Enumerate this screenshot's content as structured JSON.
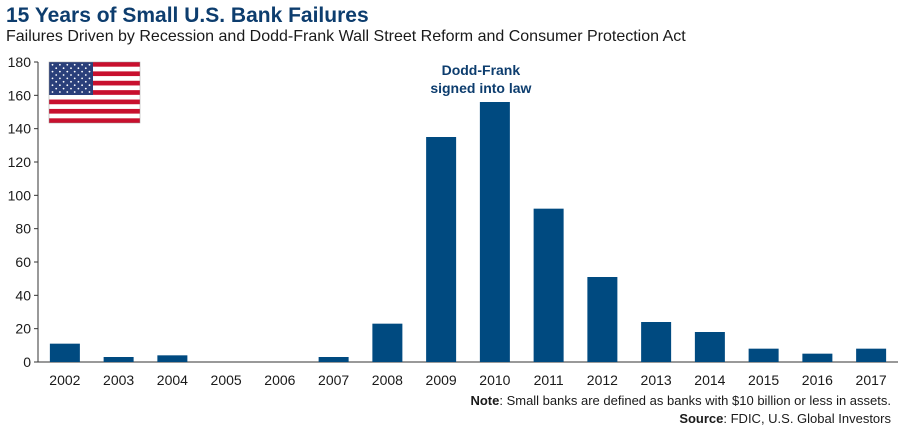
{
  "header": {
    "title": "15 Years of Small U.S. Bank Failures",
    "subtitle": "Failures Driven by Recession and Dodd-Frank Wall Street Reform and Consumer Protection Act"
  },
  "footer": {
    "note_label": "Note",
    "note_text": ": Small banks are defined as banks with $10 billion or less in assets.",
    "source_label": "Source",
    "source_text": ": FDIC, U.S. Global Investors"
  },
  "colors": {
    "bar": "#004a80",
    "title": "#0d3d6e",
    "annotation": "#0d3d6e",
    "axis": "#333333"
  },
  "chart_data": {
    "type": "bar",
    "categories": [
      "2002",
      "2003",
      "2004",
      "2005",
      "2006",
      "2007",
      "2008",
      "2009",
      "2010",
      "2011",
      "2012",
      "2013",
      "2014",
      "2015",
      "2016",
      "2017"
    ],
    "values": [
      11,
      3,
      4,
      0,
      0,
      3,
      23,
      135,
      156,
      92,
      51,
      24,
      18,
      8,
      5,
      8
    ],
    "ylim": [
      0,
      180
    ],
    "yticks": [
      0,
      20,
      40,
      60,
      80,
      100,
      120,
      140,
      160,
      180
    ],
    "grid": false,
    "annotation": {
      "lines": [
        "Dodd-Frank",
        "signed into law"
      ],
      "category": "2010"
    },
    "flag_icon": "us-flag-icon"
  }
}
